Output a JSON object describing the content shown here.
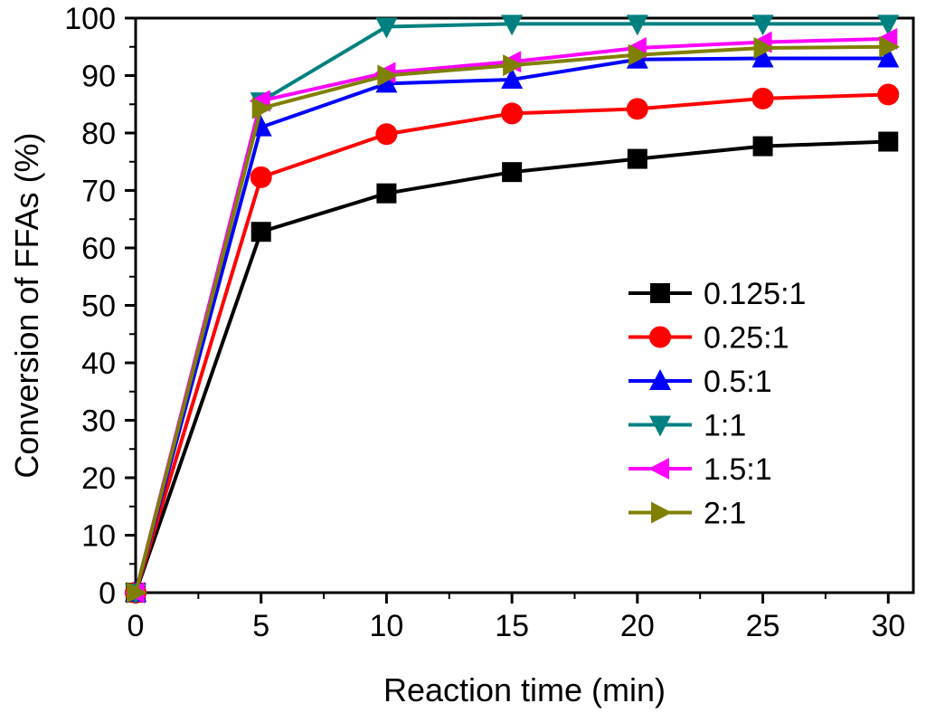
{
  "chart_data": {
    "type": "line",
    "title": "",
    "xlabel": "Reaction time (min)",
    "ylabel": "Conversion of FFAs (%)",
    "xlim": [
      0,
      31
    ],
    "ylim": [
      0,
      100
    ],
    "xticks": [
      "0",
      "5",
      "10",
      "15",
      "20",
      "25",
      "30"
    ],
    "yticks": [
      "0",
      "10",
      "20",
      "30",
      "40",
      "50",
      "60",
      "70",
      "80",
      "90",
      "100"
    ],
    "legend_position": "lower-right",
    "x": [
      0,
      5,
      10,
      15,
      20,
      25,
      30
    ],
    "series": [
      {
        "name": "0.125:1",
        "color": "#000000",
        "marker": "square",
        "values": [
          0,
          62.8,
          69.5,
          73.2,
          75.5,
          77.7,
          78.5
        ]
      },
      {
        "name": "0.25:1",
        "color": "#ff0000",
        "marker": "circle",
        "values": [
          0,
          72.3,
          79.8,
          83.4,
          84.2,
          86.0,
          86.7
        ]
      },
      {
        "name": "0.5:1",
        "color": "#0000ff",
        "marker": "triangle-up",
        "values": [
          0,
          81.0,
          88.6,
          89.3,
          92.8,
          93.0,
          93.0
        ]
      },
      {
        "name": "1:1",
        "color": "#008080",
        "marker": "triangle-down",
        "values": [
          0,
          85.5,
          98.5,
          99.0,
          99.0,
          99.0,
          99.0
        ]
      },
      {
        "name": "1.5:1",
        "color": "#ff00ff",
        "marker": "triangle-left",
        "values": [
          0,
          85.6,
          90.5,
          92.4,
          94.8,
          95.8,
          96.4
        ]
      },
      {
        "name": "2:1",
        "color": "#808000",
        "marker": "triangle-right",
        "values": [
          0,
          84.3,
          90.0,
          91.8,
          93.6,
          94.8,
          95.0
        ]
      }
    ]
  }
}
